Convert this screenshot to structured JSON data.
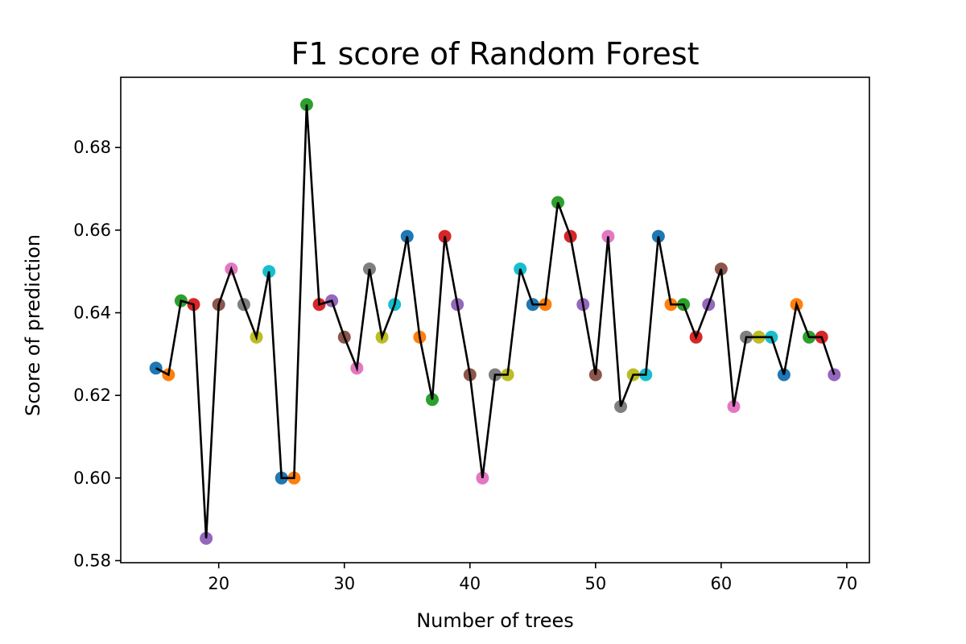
{
  "chart_data": {
    "type": "line",
    "title": "F1 score of Random Forest",
    "xlabel": "Number of trees",
    "ylabel": "Score of prediction",
    "xlim": [
      12.2,
      71.8
    ],
    "ylim": [
      0.5795,
      0.697
    ],
    "xticks": [
      20,
      30,
      40,
      50,
      60,
      70
    ],
    "xtick_labels": [
      "20",
      "30",
      "40",
      "50",
      "60",
      "70"
    ],
    "yticks": [
      0.58,
      0.6,
      0.62,
      0.64,
      0.66,
      0.68
    ],
    "ytick_labels": [
      "0.58",
      "0.60",
      "0.62",
      "0.64",
      "0.66",
      "0.68"
    ],
    "grid": false,
    "line_color": "#000000",
    "marker_colors": [
      "#1f77b4",
      "#ff7f0e",
      "#2ca02c",
      "#d62728",
      "#9467bd",
      "#8c564b",
      "#e377c2",
      "#7f7f7f",
      "#bcbd22",
      "#17becf"
    ],
    "x": [
      15,
      16,
      17,
      18,
      19,
      20,
      21,
      22,
      23,
      24,
      25,
      26,
      27,
      28,
      29,
      30,
      31,
      32,
      33,
      34,
      35,
      36,
      37,
      38,
      39,
      40,
      41,
      42,
      43,
      44,
      45,
      46,
      47,
      48,
      49,
      50,
      51,
      52,
      53,
      54,
      55,
      56,
      57,
      58,
      59,
      60,
      61,
      62,
      63,
      64,
      65,
      66,
      67,
      68,
      69
    ],
    "y": [
      0.6266,
      0.625,
      0.6429,
      0.642,
      0.5854,
      0.642,
      0.6506,
      0.642,
      0.6341,
      0.65,
      0.6,
      0.6,
      0.6904,
      0.642,
      0.6429,
      0.6341,
      0.6266,
      0.6506,
      0.6341,
      0.642,
      0.6585,
      0.6341,
      0.619,
      0.6585,
      0.642,
      0.625,
      0.6,
      0.625,
      0.625,
      0.6506,
      0.642,
      0.642,
      0.6667,
      0.6585,
      0.642,
      0.625,
      0.6585,
      0.6173,
      0.625,
      0.625,
      0.6585,
      0.642,
      0.642,
      0.6341,
      0.642,
      0.6506,
      0.6173,
      0.6341,
      0.6341,
      0.6341,
      0.625,
      0.642,
      0.6341,
      0.6341,
      0.625
    ]
  }
}
